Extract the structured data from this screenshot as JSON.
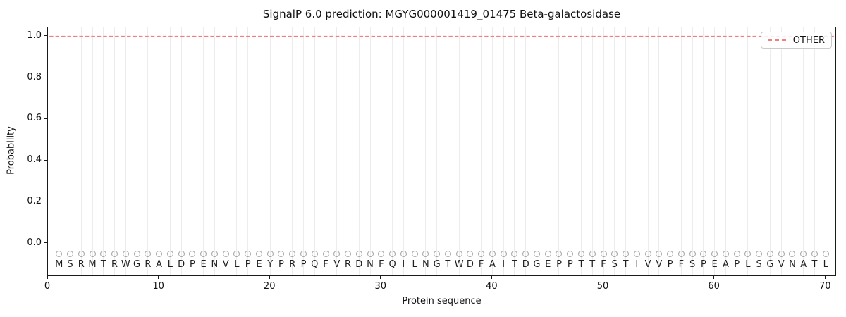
{
  "chart_data": {
    "type": "line",
    "title": "SignalP 6.0 prediction: MGYG000001419_01475 Beta-galactosidase",
    "xlabel": "Protein sequence",
    "ylabel": "Probability",
    "xlim": [
      0,
      71
    ],
    "ylim": [
      -0.161,
      1.044
    ],
    "x_ticks": [
      0,
      10,
      20,
      30,
      40,
      50,
      60,
      70
    ],
    "y_ticks": [
      0.0,
      0.2,
      0.4,
      0.6,
      0.8,
      1.0
    ],
    "grid": {
      "vertical_per_residue": true,
      "color": "#ececec"
    },
    "legend": {
      "position": "upper right",
      "entries": [
        {
          "label": "OTHER",
          "color": "#f08080",
          "linestyle": "dashed"
        }
      ]
    },
    "series": [
      {
        "name": "OTHER",
        "color": "#f08080",
        "linestyle": "dashed",
        "linewidth": 2,
        "x_start": 1,
        "x_step": 1,
        "values": [
          1,
          1,
          1,
          1,
          1,
          1,
          1,
          1,
          1,
          1,
          1,
          1,
          1,
          1,
          1,
          1,
          1,
          1,
          1,
          1,
          1,
          1,
          1,
          1,
          1,
          1,
          1,
          1,
          1,
          1,
          1,
          1,
          1,
          1,
          1,
          1,
          1,
          1,
          1,
          1,
          1,
          1,
          1,
          1,
          1,
          1,
          1,
          1,
          1,
          1,
          1,
          1,
          1,
          1,
          1,
          1,
          1,
          1,
          1,
          1,
          1,
          1,
          1,
          1,
          1,
          1,
          1,
          1,
          1,
          1
        ]
      }
    ],
    "sequence": {
      "residues": "MSRMTRWGRALDPENVLPEYPRPQFVRDNFQILNGTWDFAITDGEPPTTFSTIVVPFSPEAPLSGVNATL",
      "first_position": 1,
      "last_position": 70,
      "marker": {
        "shape": "open-circle",
        "color": "#a2a2a2",
        "y": -0.051
      },
      "letters": {
        "color": "#1f1f1f",
        "y": -0.102
      }
    },
    "axes_color": "#1a1a1a",
    "background_color": "#ffffff"
  }
}
